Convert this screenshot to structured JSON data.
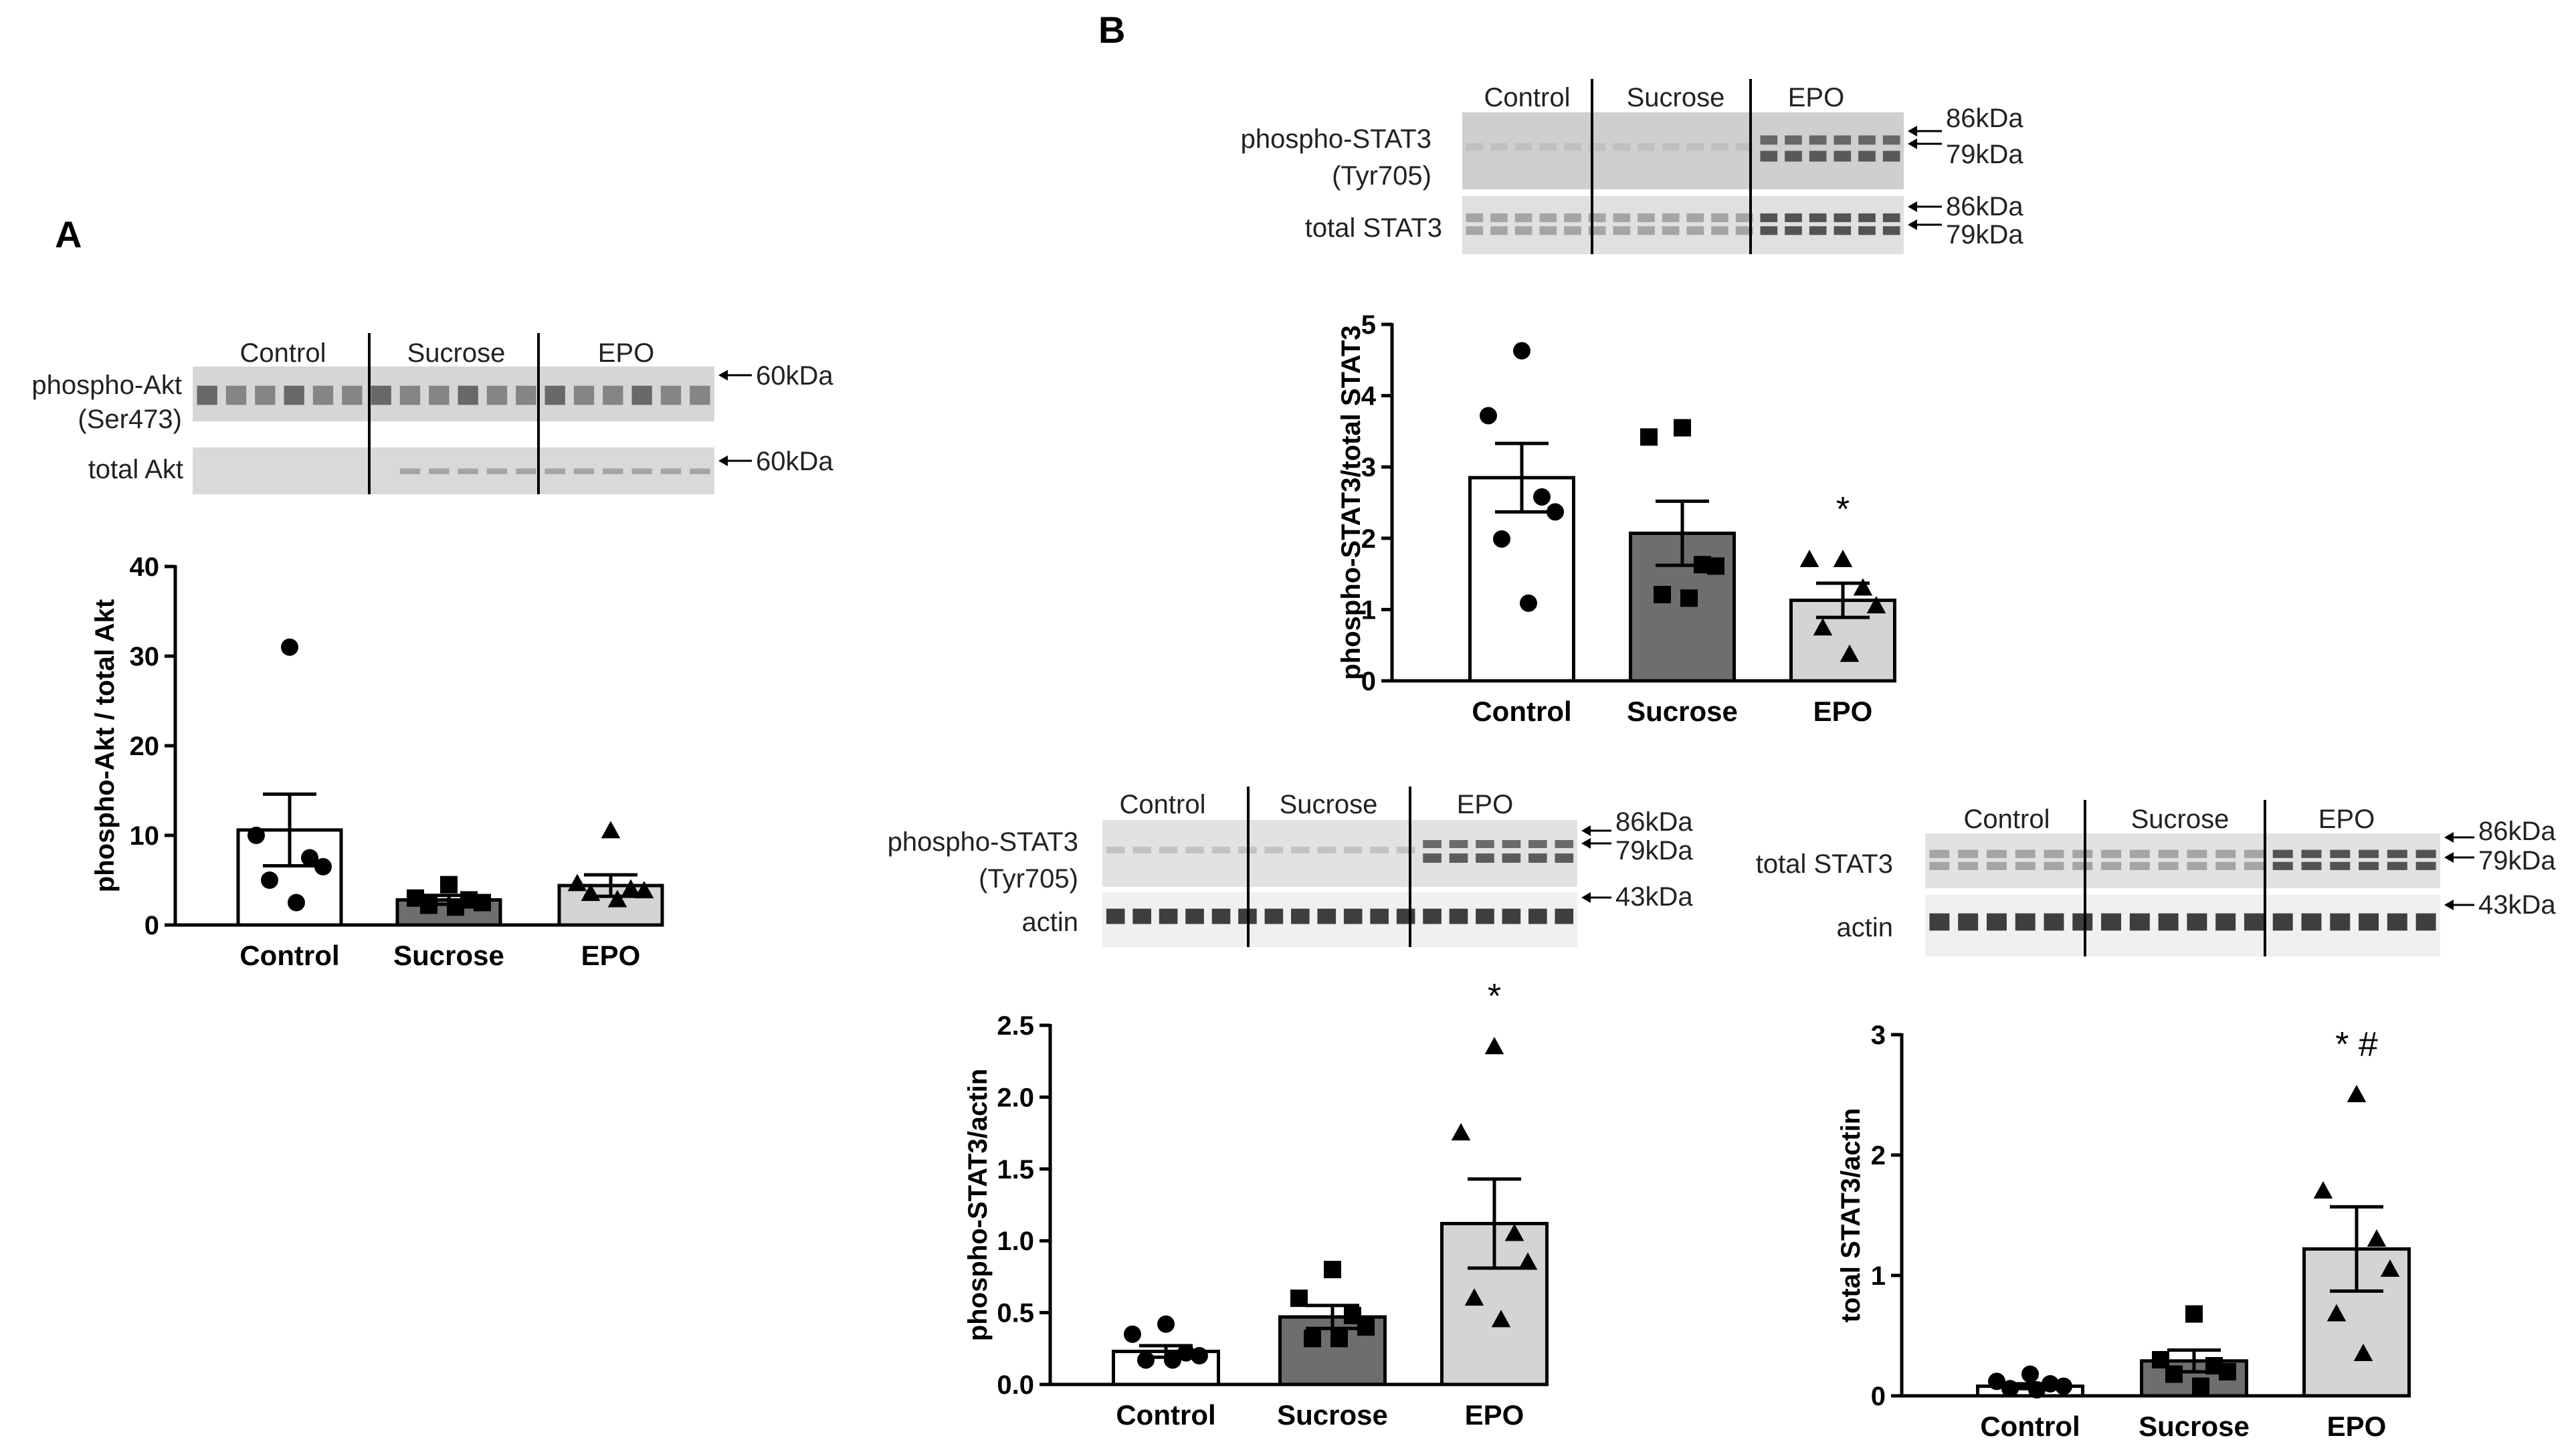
{
  "panels": {
    "A": {
      "label": "A"
    },
    "B": {
      "label": "B"
    }
  },
  "blots": [
    {
      "id": "akt",
      "groups": [
        "Control",
        "Sucrose",
        "EPO"
      ],
      "rows": [
        {
          "label": [
            "phospho-Akt",
            "(Ser473)"
          ],
          "markers": [
            "60kDa"
          ]
        },
        {
          "label": [
            "total Akt"
          ],
          "markers": [
            "60kDa"
          ]
        }
      ]
    },
    {
      "id": "pstat3-total",
      "groups": [
        "Control",
        "Sucrose",
        "EPO"
      ],
      "rows": [
        {
          "label": [
            "phospho-STAT3",
            "(Tyr705)"
          ],
          "markers": [
            "86kDa",
            "79kDa"
          ]
        },
        {
          "label": [
            "total STAT3"
          ],
          "markers": [
            "86kDa",
            "79kDa"
          ]
        }
      ]
    },
    {
      "id": "pstat3-actin",
      "groups": [
        "Control",
        "Sucrose",
        "EPO"
      ],
      "rows": [
        {
          "label": [
            "phospho-STAT3",
            "(Tyr705)"
          ],
          "markers": [
            "86kDa",
            "79kDa"
          ]
        },
        {
          "label": [
            "actin"
          ],
          "markers": [
            "43kDa"
          ]
        }
      ]
    },
    {
      "id": "tstat3-actin",
      "groups": [
        "Control",
        "Sucrose",
        "EPO"
      ],
      "rows": [
        {
          "label": [
            "total  STAT3"
          ],
          "markers": [
            "86kDa",
            "79kDa"
          ]
        },
        {
          "label": [
            "actin"
          ],
          "markers": [
            "43kDa"
          ]
        }
      ]
    }
  ],
  "chart_data": [
    {
      "id": "akt-chart",
      "type": "bar",
      "ylabel": "phospho-Akt / total Akt",
      "ylim": [
        0,
        40
      ],
      "yticks": [
        "0",
        "10",
        "20",
        "30",
        "40"
      ],
      "categories": [
        "Control",
        "Sucrose",
        "EPO"
      ],
      "values": [
        10.6,
        2.8,
        4.4
      ],
      "sem": [
        4.0,
        0.5,
        1.2
      ],
      "bar_colors": [
        "#ffffff",
        "#6e6e6e",
        "#d4d4d4"
      ],
      "markers": [
        "circle",
        "square",
        "triangle"
      ],
      "points": [
        [
          31,
          10,
          7.5,
          6.5,
          5,
          2.5
        ],
        [
          4.5,
          3,
          2.8,
          2.5,
          2.2,
          2.0
        ],
        [
          10.5,
          4.6,
          4.0,
          3.8,
          3.5,
          2.8
        ]
      ],
      "annotations": [
        "",
        "",
        ""
      ]
    },
    {
      "id": "pstat3-total-chart",
      "type": "bar",
      "ylabel": "phospho-STAT3/total STAT3",
      "ylim": [
        0,
        5
      ],
      "yticks": [
        "0",
        "1",
        "2",
        "3",
        "4",
        "5"
      ],
      "categories": [
        "Control",
        "Sucrose",
        "EPO"
      ],
      "values": [
        2.85,
        2.07,
        1.13
      ],
      "sem": [
        0.48,
        0.45,
        0.24
      ],
      "bar_colors": [
        "#ffffff",
        "#6e6e6e",
        "#d4d4d4"
      ],
      "markers": [
        "circle",
        "square",
        "triangle"
      ],
      "points": [
        [
          4.63,
          3.72,
          2.58,
          2.37,
          1.99,
          1.09
        ],
        [
          3.55,
          3.42,
          1.63,
          1.61,
          1.21,
          1.16
        ],
        [
          1.7,
          1.7,
          1.3,
          1.05,
          0.74,
          0.37
        ]
      ],
      "annotations": [
        "",
        "",
        "*"
      ]
    },
    {
      "id": "pstat3-actin-chart",
      "type": "bar",
      "ylabel": "phospho-STAT3/actin",
      "ylim": [
        0,
        2.5
      ],
      "yticks": [
        "0.0",
        "0.5",
        "1.0",
        "1.5",
        "2.0",
        "2.5"
      ],
      "categories": [
        "Control",
        "Sucrose",
        "EPO"
      ],
      "values": [
        0.23,
        0.47,
        1.12
      ],
      "sem": [
        0.04,
        0.08,
        0.31
      ],
      "bar_colors": [
        "#ffffff",
        "#6e6e6e",
        "#d4d4d4"
      ],
      "markers": [
        "circle",
        "square",
        "triangle"
      ],
      "points": [
        [
          0.42,
          0.35,
          0.22,
          0.2,
          0.17,
          0.17
        ],
        [
          0.8,
          0.6,
          0.48,
          0.4,
          0.32,
          0.32
        ],
        [
          2.35,
          1.75,
          1.05,
          0.85,
          0.6,
          0.45
        ]
      ],
      "annotations": [
        "",
        "",
        "*"
      ]
    },
    {
      "id": "tstat3-actin-chart",
      "type": "bar",
      "ylabel": "total STAT3/actin",
      "ylim": [
        0,
        3
      ],
      "yticks": [
        "0",
        "1",
        "2",
        "3"
      ],
      "categories": [
        "Control",
        "Sucrose",
        "EPO"
      ],
      "values": [
        0.08,
        0.29,
        1.22
      ],
      "sem": [
        0.02,
        0.09,
        0.35
      ],
      "bar_colors": [
        "#ffffff",
        "#6e6e6e",
        "#d4d4d4"
      ],
      "markers": [
        "circle",
        "square",
        "triangle"
      ],
      "points": [
        [
          0.18,
          0.12,
          0.1,
          0.08,
          0.06,
          0.05
        ],
        [
          0.68,
          0.3,
          0.25,
          0.2,
          0.18,
          0.08
        ],
        [
          2.5,
          1.7,
          1.3,
          1.05,
          0.68,
          0.35
        ]
      ],
      "annotations": [
        "",
        "",
        "* #"
      ]
    }
  ]
}
